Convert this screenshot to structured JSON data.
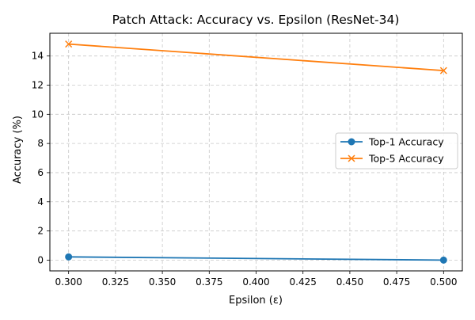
{
  "chart_data": {
    "type": "line",
    "title": "Patch Attack: Accuracy vs. Epsilon (ResNet-34)",
    "xlabel": "Epsilon (ε)",
    "ylabel": "Accuracy (%)",
    "xlim": [
      0.29,
      0.51
    ],
    "ylim": [
      -0.74,
      15.56
    ],
    "xticks": [
      0.3,
      0.325,
      0.35,
      0.375,
      0.4,
      0.425,
      0.45,
      0.475,
      0.5
    ],
    "xtick_labels": [
      "0.300",
      "0.325",
      "0.350",
      "0.375",
      "0.400",
      "0.425",
      "0.450",
      "0.475",
      "0.500"
    ],
    "yticks": [
      0,
      2,
      4,
      6,
      8,
      10,
      12,
      14
    ],
    "ytick_labels": [
      "0",
      "2",
      "4",
      "6",
      "8",
      "10",
      "12",
      "14"
    ],
    "grid": true,
    "grid_style": "dashed",
    "legend_position": "center-right",
    "x": [
      0.3,
      0.5
    ],
    "series": [
      {
        "name": "Top-1 Accuracy",
        "values": [
          0.22,
          0.0
        ],
        "color": "#1f77b4",
        "marker": "circle"
      },
      {
        "name": "Top-5 Accuracy",
        "values": [
          14.82,
          13.0
        ],
        "color": "#ff7f0e",
        "marker": "x"
      }
    ]
  }
}
